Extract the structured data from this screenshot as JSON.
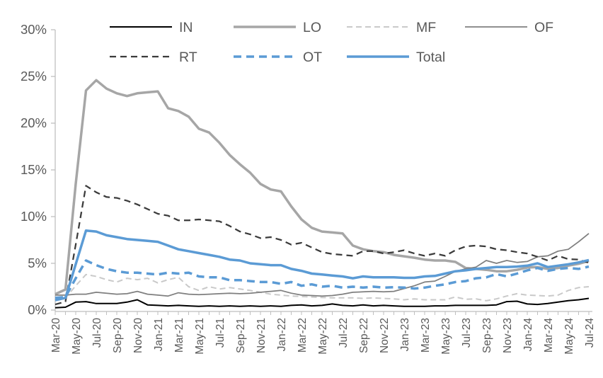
{
  "chart_data": {
    "type": "line",
    "title": "",
    "xlabel": "",
    "ylabel": "",
    "ylim": [
      0,
      30
    ],
    "y_tick_values": [
      0,
      5,
      10,
      15,
      20,
      25,
      30
    ],
    "y_tick_labels": [
      "0%",
      "5%",
      "10%",
      "15%",
      "20%",
      "25%",
      "30%"
    ],
    "grid": false,
    "legend_position": "top",
    "x_label_step": 2,
    "axis_color": "#bfbfbf",
    "text_color": "#595959",
    "x": [
      "Mar-20",
      "Apr-20",
      "May-20",
      "Jun-20",
      "Jul-20",
      "Aug-20",
      "Sep-20",
      "Oct-20",
      "Nov-20",
      "Dec-20",
      "Jan-21",
      "Feb-21",
      "Mar-21",
      "Apr-21",
      "May-21",
      "Jun-21",
      "Jul-21",
      "Aug-21",
      "Sep-21",
      "Oct-21",
      "Nov-21",
      "Dec-21",
      "Jan-22",
      "Feb-22",
      "Mar-22",
      "Apr-22",
      "May-22",
      "Jun-22",
      "Jul-22",
      "Aug-22",
      "Sep-22",
      "Oct-22",
      "Nov-22",
      "Dec-22",
      "Jan-23",
      "Feb-23",
      "Mar-23",
      "Apr-23",
      "May-23",
      "Jun-23",
      "Jul-23",
      "Aug-23",
      "Sep-23",
      "Oct-23",
      "Nov-23",
      "Dec-23",
      "Jan-24",
      "Feb-24",
      "Mar-24",
      "Apr-24",
      "May-24",
      "Jun-24",
      "Jul-24"
    ],
    "shown_x_tick_labels": [
      "Mar-20",
      "May-20",
      "Jul-20",
      "Sep-20",
      "Nov-20",
      "Jan-21",
      "Mar-21",
      "May-21",
      "Jul-21",
      "Sep-21",
      "Nov-21",
      "Jan-22",
      "Mar-22",
      "May-22",
      "Jul-22",
      "Sep-22",
      "Nov-22",
      "Jan-23",
      "Mar-23",
      "May-23",
      "Jul-23",
      "Sep-23",
      "Nov-23",
      "Jan-24",
      "Mar-24",
      "May-24",
      "Jul-24"
    ],
    "series": [
      {
        "name": "IN",
        "color": "#000000",
        "width": 2,
        "dash": null,
        "values": [
          0.25,
          0.3,
          0.85,
          0.9,
          0.7,
          0.7,
          0.7,
          0.85,
          1.1,
          0.55,
          0.5,
          0.45,
          0.5,
          0.45,
          0.4,
          0.45,
          0.4,
          0.45,
          0.4,
          0.45,
          0.4,
          0.45,
          0.4,
          0.5,
          0.55,
          0.45,
          0.5,
          0.65,
          0.5,
          0.45,
          0.55,
          0.45,
          0.5,
          0.45,
          0.4,
          0.4,
          0.4,
          0.45,
          0.45,
          0.5,
          0.5,
          0.5,
          0.5,
          0.55,
          0.9,
          0.95,
          0.65,
          0.6,
          0.7,
          0.85,
          1.0,
          1.1,
          1.25
        ]
      },
      {
        "name": "LO",
        "color": "#a6a6a6",
        "width": 3.5,
        "dash": null,
        "values": [
          1.7,
          2.2,
          13.5,
          23.5,
          24.6,
          23.7,
          23.2,
          22.9,
          23.2,
          23.3,
          23.4,
          21.6,
          21.3,
          20.7,
          19.4,
          19.0,
          17.9,
          16.6,
          15.6,
          14.7,
          13.5,
          12.9,
          12.7,
          11.1,
          9.7,
          8.8,
          8.4,
          8.3,
          8.2,
          6.9,
          6.5,
          6.3,
          6.2,
          5.9,
          5.75,
          5.6,
          5.4,
          5.3,
          5.3,
          5.15,
          4.5,
          4.4,
          4.3,
          4.15,
          4.15,
          4.3,
          4.55,
          4.6,
          4.4,
          4.5,
          4.75,
          4.95,
          5.25
        ]
      },
      {
        "name": "MF",
        "color": "#c9c9c9",
        "width": 2,
        "dash": "8 5",
        "values": [
          1.2,
          1.3,
          2.6,
          3.8,
          3.6,
          3.25,
          3.0,
          3.4,
          3.25,
          3.4,
          2.9,
          3.25,
          3.5,
          2.5,
          2.1,
          2.5,
          2.25,
          2.4,
          2.25,
          2.1,
          1.9,
          1.7,
          1.6,
          1.5,
          1.45,
          1.4,
          1.35,
          1.3,
          1.3,
          1.3,
          1.25,
          1.3,
          1.25,
          1.2,
          1.1,
          1.2,
          1.1,
          1.1,
          1.1,
          1.4,
          1.15,
          1.2,
          1.0,
          1.2,
          1.5,
          1.75,
          1.6,
          1.55,
          1.5,
          1.6,
          2.1,
          2.4,
          2.5
        ]
      },
      {
        "name": "OF",
        "color": "#7f7f7f",
        "width": 1.75,
        "dash": null,
        "values": [
          1.6,
          1.6,
          1.7,
          1.7,
          1.9,
          1.8,
          1.7,
          1.75,
          2.0,
          1.7,
          1.6,
          1.5,
          1.85,
          1.7,
          1.65,
          1.7,
          1.75,
          1.8,
          1.75,
          1.8,
          1.9,
          2.0,
          2.1,
          1.8,
          1.6,
          1.55,
          1.5,
          1.55,
          1.7,
          1.9,
          1.95,
          2.0,
          1.95,
          2.0,
          2.3,
          2.6,
          3.0,
          3.1,
          3.6,
          4.15,
          4.4,
          4.6,
          5.3,
          5.0,
          5.3,
          5.1,
          5.2,
          5.7,
          5.8,
          6.3,
          6.5,
          7.3,
          8.2
        ]
      },
      {
        "name": "RT",
        "color": "#3b3b3b",
        "width": 2.25,
        "dash": "9 6",
        "values": [
          0.6,
          0.9,
          7.0,
          13.3,
          12.6,
          12.1,
          12.0,
          11.7,
          11.3,
          10.8,
          10.3,
          10.1,
          9.6,
          9.6,
          9.7,
          9.6,
          9.5,
          9.0,
          8.4,
          8.1,
          7.7,
          7.8,
          7.5,
          7.0,
          7.2,
          6.7,
          6.2,
          6.0,
          5.9,
          5.8,
          6.3,
          6.3,
          6.05,
          6.2,
          6.4,
          6.05,
          5.8,
          6.05,
          5.8,
          6.4,
          6.8,
          6.9,
          6.8,
          6.5,
          6.4,
          6.2,
          6.05,
          5.7,
          5.3,
          5.8,
          5.45,
          5.4,
          5.05
        ]
      },
      {
        "name": "OT",
        "color": "#5b9bd5",
        "width": 3.5,
        "dash": "11 7",
        "values": [
          1.3,
          1.4,
          3.4,
          5.3,
          4.8,
          4.4,
          4.15,
          4.0,
          4.0,
          3.9,
          3.8,
          4.0,
          3.9,
          4.0,
          3.6,
          3.5,
          3.5,
          3.2,
          3.2,
          3.1,
          3.0,
          3.0,
          2.8,
          3.0,
          2.6,
          2.75,
          2.5,
          2.6,
          2.4,
          2.5,
          2.4,
          2.5,
          2.4,
          2.45,
          2.4,
          2.3,
          2.4,
          2.6,
          2.75,
          3.0,
          3.1,
          3.4,
          3.5,
          3.85,
          3.6,
          3.9,
          4.25,
          4.5,
          4.2,
          4.4,
          4.5,
          4.4,
          4.65
        ]
      },
      {
        "name": "Total",
        "color": "#5b9bd5",
        "width": 3.5,
        "dash": null,
        "values": [
          1.05,
          1.3,
          4.9,
          8.5,
          8.4,
          8.0,
          7.8,
          7.6,
          7.5,
          7.4,
          7.3,
          6.9,
          6.5,
          6.3,
          6.1,
          5.9,
          5.7,
          5.4,
          5.3,
          5.0,
          4.9,
          4.8,
          4.8,
          4.4,
          4.2,
          3.9,
          3.8,
          3.7,
          3.6,
          3.4,
          3.6,
          3.5,
          3.5,
          3.5,
          3.45,
          3.45,
          3.6,
          3.65,
          3.9,
          4.15,
          4.25,
          4.4,
          4.5,
          4.6,
          4.6,
          4.65,
          4.75,
          5.0,
          4.6,
          4.75,
          4.9,
          5.1,
          5.35
        ]
      }
    ]
  }
}
